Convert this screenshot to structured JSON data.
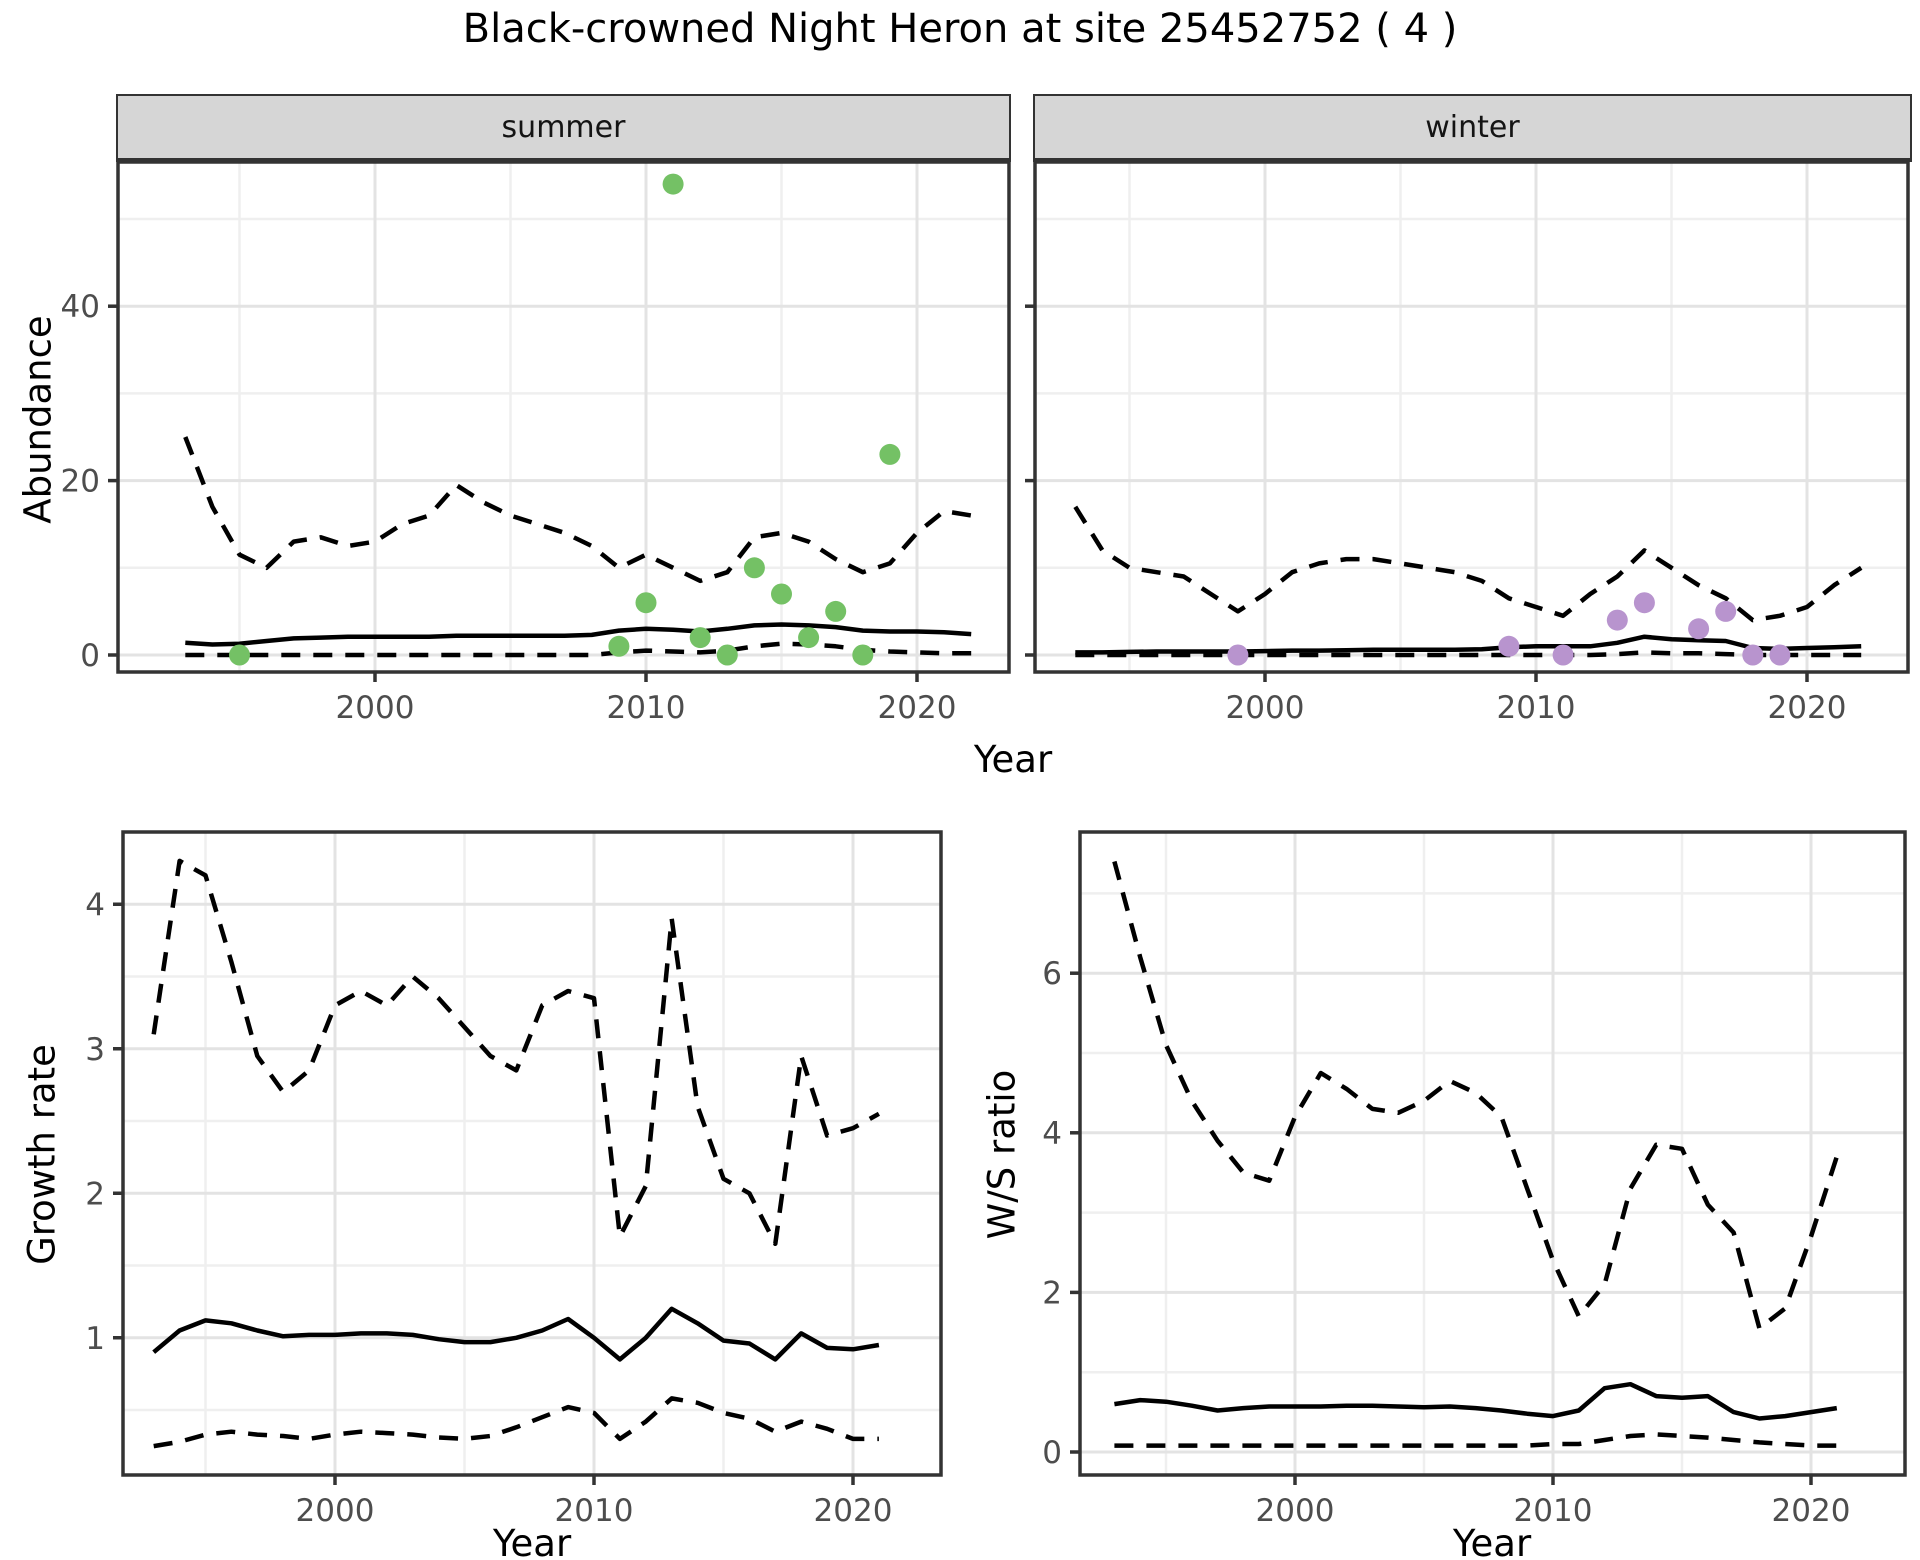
{
  "title": "Black-crowned Night Heron at site 25452752 ( 4 )",
  "facets": {
    "summer": "summer",
    "winter": "winter"
  },
  "axis_labels": {
    "x": "Year",
    "x_bottom_left": "Year",
    "x_bottom_right": "Year",
    "y_abundance": "Abundance",
    "y_growth": "Growth rate",
    "y_ws": "W/S ratio"
  },
  "colors": {
    "summer_point": "#74C165",
    "winter_point": "#B894CE",
    "line": "#000000",
    "strip_bg": "#d6d6d6",
    "grid_major": "#e3e3e3",
    "grid_minor": "#efefef",
    "panel_border": "#333333",
    "tick_text": "#4d4d4d"
  },
  "chart_data": [
    {
      "id": "abundance_summer",
      "type": "line",
      "facet_label": "summer",
      "xlabel": "Year",
      "ylabel": "Abundance",
      "x": [
        1993,
        1994,
        1995,
        1996,
        1997,
        1998,
        1999,
        2000,
        2001,
        2002,
        2003,
        2004,
        2005,
        2006,
        2007,
        2008,
        2009,
        2010,
        2011,
        2012,
        2013,
        2014,
        2015,
        2016,
        2017,
        2018,
        2019,
        2020,
        2021,
        2022
      ],
      "series": [
        {
          "name": "ci_upper_dashed",
          "style": "dashed",
          "values": [
            25,
            17,
            11.5,
            10,
            13,
            13.5,
            12.5,
            13,
            15,
            16,
            19.5,
            17.5,
            16,
            15,
            14,
            12.5,
            10,
            11.5,
            10,
            8.5,
            9.5,
            13.5,
            14,
            13,
            11,
            9.5,
            10.5,
            14,
            16.5,
            16
          ]
        },
        {
          "name": "median_solid",
          "style": "solid",
          "values": [
            1.4,
            1.2,
            1.3,
            1.6,
            1.9,
            2.0,
            2.1,
            2.1,
            2.1,
            2.1,
            2.2,
            2.2,
            2.2,
            2.2,
            2.2,
            2.3,
            2.8,
            3.0,
            2.9,
            2.7,
            3.0,
            3.4,
            3.5,
            3.4,
            3.2,
            2.8,
            2.7,
            2.7,
            2.6,
            2.4
          ]
        },
        {
          "name": "ci_lower_dashed",
          "style": "dashed",
          "values": [
            0,
            0,
            0,
            0,
            0,
            0,
            0,
            0,
            0,
            0,
            0,
            0,
            0,
            0,
            0,
            0,
            0.3,
            0.5,
            0.4,
            0.3,
            0.5,
            1.0,
            1.3,
            1.2,
            1.0,
            0.6,
            0.4,
            0.3,
            0.2,
            0.2
          ]
        }
      ],
      "points": {
        "name": "observed_counts",
        "color_key": "summer_point",
        "xy": [
          [
            1995,
            0
          ],
          [
            2009,
            1
          ],
          [
            2010,
            6
          ],
          [
            2011,
            54
          ],
          [
            2012,
            2
          ],
          [
            2013,
            0
          ],
          [
            2014,
            10
          ],
          [
            2015,
            7
          ],
          [
            2016,
            2
          ],
          [
            2017,
            5
          ],
          [
            2018,
            0
          ],
          [
            2019,
            23
          ]
        ]
      },
      "xticks": [
        2000,
        2010,
        2020
      ],
      "yticks": [
        0,
        20,
        40
      ],
      "ylim": [
        -2,
        56.5
      ],
      "xlim": [
        1990.5,
        2023.4
      ],
      "grid": true
    },
    {
      "id": "abundance_winter",
      "type": "line",
      "facet_label": "winter",
      "xlabel": "Year",
      "ylabel": "Abundance",
      "x": [
        1993,
        1994,
        1995,
        1996,
        1997,
        1998,
        1999,
        2000,
        2001,
        2002,
        2003,
        2004,
        2005,
        2006,
        2007,
        2008,
        2009,
        2010,
        2011,
        2012,
        2013,
        2014,
        2015,
        2016,
        2017,
        2018,
        2019,
        2020,
        2021,
        2022
      ],
      "series": [
        {
          "name": "ci_upper_dashed",
          "style": "dashed",
          "values": [
            17,
            12,
            10,
            9.5,
            9,
            7,
            5,
            7,
            9.5,
            10.5,
            11,
            11,
            10.5,
            10,
            9.5,
            8.5,
            6.5,
            5.5,
            4.5,
            7,
            9,
            12,
            10,
            8,
            6.5,
            4,
            4.5,
            5.5,
            8,
            10
          ]
        },
        {
          "name": "median_solid",
          "style": "solid",
          "values": [
            0.3,
            0.3,
            0.35,
            0.4,
            0.4,
            0.4,
            0.4,
            0.45,
            0.5,
            0.5,
            0.55,
            0.6,
            0.6,
            0.6,
            0.6,
            0.65,
            0.9,
            1.0,
            1.0,
            1.0,
            1.4,
            2.1,
            1.8,
            1.7,
            1.6,
            0.8,
            0.7,
            0.8,
            0.9,
            1.0
          ]
        },
        {
          "name": "ci_lower_dashed",
          "style": "dashed",
          "values": [
            0,
            0,
            0,
            0,
            0,
            0,
            0,
            0,
            0,
            0,
            0,
            0,
            0,
            0,
            0,
            0,
            0,
            0,
            0,
            0,
            0.1,
            0.3,
            0.2,
            0.2,
            0.1,
            0,
            0,
            0,
            0,
            0
          ]
        }
      ],
      "points": {
        "name": "observed_counts",
        "color_key": "winter_point",
        "xy": [
          [
            1999,
            0
          ],
          [
            2009,
            1
          ],
          [
            2011,
            0
          ],
          [
            2013,
            4
          ],
          [
            2014,
            6
          ],
          [
            2016,
            3
          ],
          [
            2017,
            5
          ],
          [
            2018,
            0
          ],
          [
            2019,
            0
          ]
        ]
      },
      "xticks": [
        2000,
        2010,
        2020
      ],
      "yticks": [
        0,
        20,
        40
      ],
      "ylim": [
        -2,
        56.5
      ],
      "xlim": [
        1991.5,
        2023.7
      ],
      "grid": true
    },
    {
      "id": "growth_rate",
      "type": "line",
      "facet_label": "",
      "xlabel": "Year",
      "ylabel": "Growth rate",
      "x": [
        1993,
        1994,
        1995,
        1996,
        1997,
        1998,
        1999,
        2000,
        2001,
        2002,
        2003,
        2004,
        2005,
        2006,
        2007,
        2008,
        2009,
        2010,
        2011,
        2012,
        2013,
        2014,
        2015,
        2016,
        2017,
        2018,
        2019,
        2020,
        2021
      ],
      "series": [
        {
          "name": "ci_upper_dashed",
          "style": "dashed",
          "values": [
            3.1,
            4.3,
            4.2,
            3.6,
            2.95,
            2.7,
            2.85,
            3.3,
            3.4,
            3.3,
            3.5,
            3.35,
            3.15,
            2.95,
            2.85,
            3.3,
            3.4,
            3.35,
            1.7,
            2.05,
            3.9,
            2.6,
            2.1,
            2.0,
            1.65,
            2.95,
            2.4,
            2.45,
            2.55
          ]
        },
        {
          "name": "median_solid",
          "style": "solid",
          "values": [
            0.9,
            1.05,
            1.12,
            1.1,
            1.05,
            1.01,
            1.02,
            1.02,
            1.03,
            1.03,
            1.02,
            0.99,
            0.97,
            0.97,
            1.0,
            1.05,
            1.13,
            1.0,
            0.85,
            1.0,
            1.2,
            1.1,
            0.98,
            0.96,
            0.85,
            1.03,
            0.93,
            0.92,
            0.95
          ]
        },
        {
          "name": "ci_lower_dashed",
          "style": "dashed",
          "values": [
            0.25,
            0.28,
            0.33,
            0.35,
            0.33,
            0.32,
            0.3,
            0.33,
            0.35,
            0.34,
            0.33,
            0.31,
            0.3,
            0.32,
            0.38,
            0.45,
            0.52,
            0.48,
            0.3,
            0.42,
            0.58,
            0.55,
            0.48,
            0.44,
            0.35,
            0.42,
            0.37,
            0.3,
            0.3
          ]
        }
      ],
      "points": null,
      "xticks": [
        2000,
        2010,
        2020
      ],
      "yticks": [
        1,
        2,
        3,
        4
      ],
      "ylim": [
        0.05,
        4.5
      ],
      "xlim": [
        1991.8,
        2023.3
      ],
      "grid": true
    },
    {
      "id": "ws_ratio",
      "type": "line",
      "facet_label": "",
      "xlabel": "Year",
      "ylabel": "W/S ratio",
      "x": [
        1993,
        1994,
        1995,
        1996,
        1997,
        1998,
        1999,
        2000,
        2001,
        2002,
        2003,
        2004,
        2005,
        2006,
        2007,
        2008,
        2009,
        2010,
        2011,
        2012,
        2013,
        2014,
        2015,
        2016,
        2017,
        2018,
        2019,
        2020,
        2021
      ],
      "series": [
        {
          "name": "ci_upper_dashed",
          "style": "dashed",
          "values": [
            7.4,
            6.2,
            5.1,
            4.4,
            3.9,
            3.5,
            3.4,
            4.2,
            4.75,
            4.55,
            4.3,
            4.25,
            4.4,
            4.65,
            4.5,
            4.2,
            3.3,
            2.4,
            1.7,
            2.1,
            3.3,
            3.85,
            3.8,
            3.1,
            2.75,
            1.55,
            1.8,
            2.7,
            3.7
          ]
        },
        {
          "name": "median_solid",
          "style": "solid",
          "values": [
            0.6,
            0.65,
            0.63,
            0.58,
            0.52,
            0.55,
            0.57,
            0.57,
            0.57,
            0.58,
            0.58,
            0.57,
            0.56,
            0.57,
            0.55,
            0.52,
            0.48,
            0.45,
            0.52,
            0.8,
            0.85,
            0.7,
            0.68,
            0.7,
            0.5,
            0.42,
            0.45,
            0.5,
            0.55
          ]
        },
        {
          "name": "ci_lower_dashed",
          "style": "dashed",
          "values": [
            0.08,
            0.08,
            0.08,
            0.08,
            0.08,
            0.08,
            0.08,
            0.08,
            0.08,
            0.08,
            0.08,
            0.08,
            0.08,
            0.08,
            0.08,
            0.08,
            0.08,
            0.1,
            0.1,
            0.15,
            0.2,
            0.22,
            0.2,
            0.18,
            0.15,
            0.12,
            0.1,
            0.08,
            0.08
          ]
        }
      ],
      "points": null,
      "xticks": [
        2000,
        2010,
        2020
      ],
      "yticks": [
        0,
        2,
        4,
        6
      ],
      "ylim": [
        -0.3,
        7.9
      ],
      "xlim": [
        1991.7,
        2023.6
      ],
      "grid": true
    }
  ]
}
